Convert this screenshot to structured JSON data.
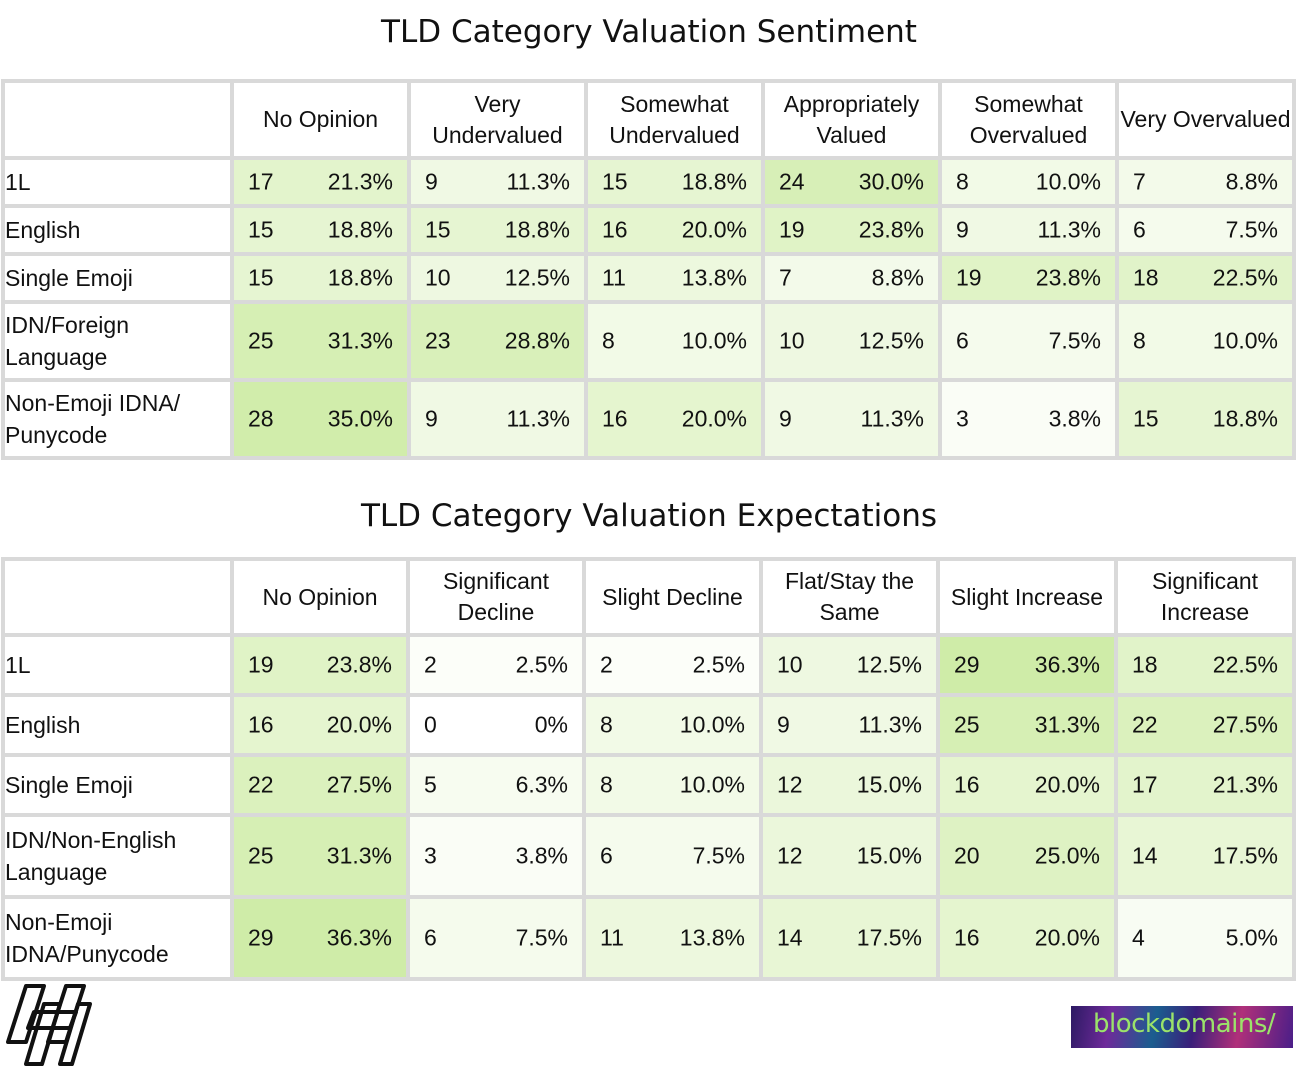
{
  "chart_data": [
    {
      "type": "table",
      "title": "TLD Category Valuation Sentiment",
      "columns": [
        "No Opinion",
        "Very Undervalued",
        "Somewhat Undervalued",
        "Appropriately Valued",
        "Somewhat Overvalued",
        "Very Overvalued"
      ],
      "rows": [
        {
          "label": "1L",
          "cells": [
            [
              "17",
              "21.3%"
            ],
            [
              "9",
              "11.3%"
            ],
            [
              "15",
              "18.8%"
            ],
            [
              "24",
              "30.0%"
            ],
            [
              "8",
              "10.0%"
            ],
            [
              "7",
              "8.8%"
            ]
          ]
        },
        {
          "label": "English",
          "cells": [
            [
              "15",
              "18.8%"
            ],
            [
              "15",
              "18.8%"
            ],
            [
              "16",
              "20.0%"
            ],
            [
              "19",
              "23.8%"
            ],
            [
              "9",
              "11.3%"
            ],
            [
              "6",
              "7.5%"
            ]
          ]
        },
        {
          "label": "Single Emoji",
          "cells": [
            [
              "15",
              "18.8%"
            ],
            [
              "10",
              "12.5%"
            ],
            [
              "11",
              "13.8%"
            ],
            [
              "7",
              "8.8%"
            ],
            [
              "19",
              "23.8%"
            ],
            [
              "18",
              "22.5%"
            ]
          ]
        },
        {
          "label": "IDN/Foreign Language",
          "cells": [
            [
              "25",
              "31.3%"
            ],
            [
              "23",
              "28.8%"
            ],
            [
              "8",
              "10.0%"
            ],
            [
              "10",
              "12.5%"
            ],
            [
              "6",
              "7.5%"
            ],
            [
              "8",
              "10.0%"
            ]
          ]
        },
        {
          "label": "Non-Emoji IDNA/ Punycode",
          "cells": [
            [
              "28",
              "35.0%"
            ],
            [
              "9",
              "11.3%"
            ],
            [
              "16",
              "20.0%"
            ],
            [
              "9",
              "11.3%"
            ],
            [
              "3",
              "3.8%"
            ],
            [
              "15",
              "18.8%"
            ]
          ]
        }
      ]
    },
    {
      "type": "table",
      "title": "TLD Category Valuation Expectations",
      "columns": [
        "No Opinion",
        "Significant Decline",
        "Slight Decline",
        "Flat/Stay the Same",
        "Slight Increase",
        "Significant Increase"
      ],
      "rows": [
        {
          "label": "1L",
          "cells": [
            [
              "19",
              "23.8%"
            ],
            [
              "2",
              "2.5%"
            ],
            [
              "2",
              "2.5%"
            ],
            [
              "10",
              "12.5%"
            ],
            [
              "29",
              "36.3%"
            ],
            [
              "18",
              "22.5%"
            ]
          ]
        },
        {
          "label": "English",
          "cells": [
            [
              "16",
              "20.0%"
            ],
            [
              "0",
              "0%"
            ],
            [
              "8",
              "10.0%"
            ],
            [
              "9",
              "11.3%"
            ],
            [
              "25",
              "31.3%"
            ],
            [
              "22",
              "27.5%"
            ]
          ]
        },
        {
          "label": "Single Emoji",
          "cells": [
            [
              "22",
              "27.5%"
            ],
            [
              "5",
              "6.3%"
            ],
            [
              "8",
              "10.0%"
            ],
            [
              "12",
              "15.0%"
            ],
            [
              "16",
              "20.0%"
            ],
            [
              "17",
              "21.3%"
            ]
          ]
        },
        {
          "label": "IDN/Non-English Language",
          "cells": [
            [
              "25",
              "31.3%"
            ],
            [
              "3",
              "3.8%"
            ],
            [
              "6",
              "7.5%"
            ],
            [
              "12",
              "15.0%"
            ],
            [
              "20",
              "25.0%"
            ],
            [
              "14",
              "17.5%"
            ]
          ]
        },
        {
          "label": "Non-Emoji IDNA/Punycode",
          "cells": [
            [
              "29",
              "36.3%"
            ],
            [
              "6",
              "7.5%"
            ],
            [
              "11",
              "13.8%"
            ],
            [
              "14",
              "17.5%"
            ],
            [
              "16",
              "20.0%"
            ],
            [
              "4",
              "5.0%"
            ]
          ]
        }
      ]
    }
  ],
  "colors": {
    "grid": "#d9d9d9",
    "heat_low": "#ffffff",
    "heat_high": "#cfeca8"
  },
  "brand": {
    "right_logo_text": "blockdomains/",
    "left_logo_icon": "stacked-h-logo-icon"
  }
}
